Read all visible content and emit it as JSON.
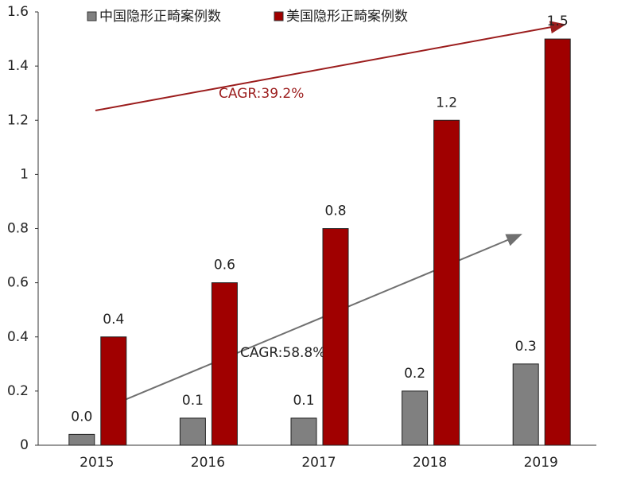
{
  "chart_data": {
    "type": "bar",
    "categories": [
      "2015",
      "2016",
      "2017",
      "2018",
      "2019"
    ],
    "series": [
      {
        "name": "中国隐形正畸案例数",
        "color": "#808080",
        "values": [
          0.04,
          0.1,
          0.1,
          0.2,
          0.3
        ],
        "value_labels": [
          "0.0",
          "0.1",
          "0.1",
          "0.2",
          "0.3"
        ]
      },
      {
        "name": "美国隐形正畸案例数",
        "color": "#a00000",
        "values": [
          0.4,
          0.6,
          0.8,
          1.2,
          1.5
        ]
      }
    ],
    "annotations": [
      "CAGR:39.2%",
      "CAGR:58.8%"
    ],
    "ylim": [
      0,
      1.6
    ],
    "yticks": [
      0,
      0.2,
      0.4,
      0.6,
      0.8,
      1,
      1.2,
      1.4,
      1.6
    ],
    "grid": false
  }
}
